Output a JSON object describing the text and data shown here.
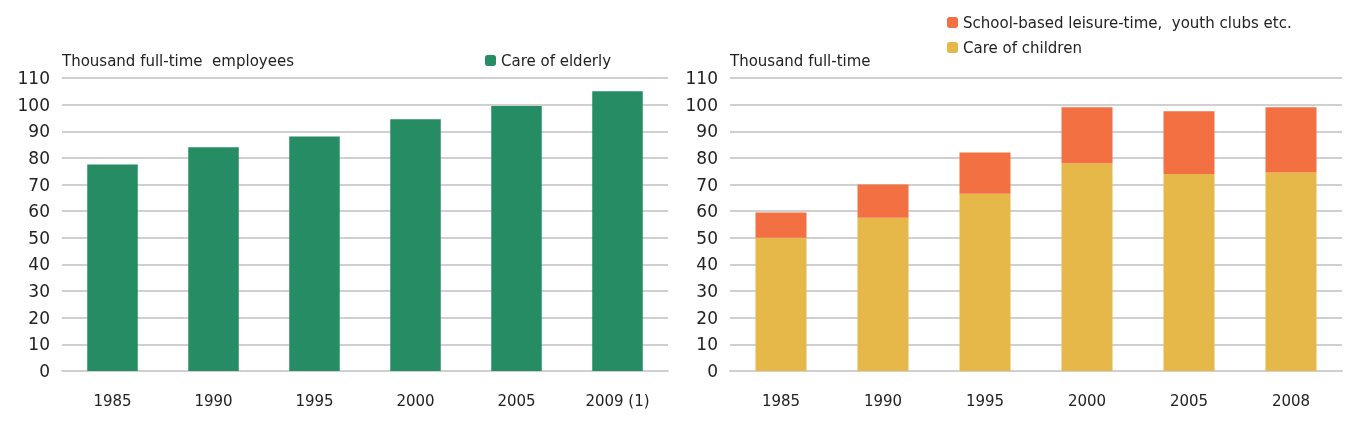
{
  "chart_data": [
    {
      "type": "bar",
      "ylabel": "Thousand full-time  employees",
      "categories": [
        "1985",
        "1990",
        "1995",
        "2000",
        "2005",
        "2009 (1)"
      ],
      "series": [
        {
          "name": "Care of elderly",
          "color": "#258c63",
          "values": [
            77.5,
            84,
            88,
            94.5,
            99.5,
            105
          ]
        }
      ],
      "ylim": [
        0,
        110
      ],
      "yticks": [
        0,
        10,
        20,
        30,
        40,
        50,
        60,
        70,
        80,
        90,
        100,
        110
      ],
      "grid": "y",
      "legend": "top right"
    },
    {
      "type": "bar",
      "ylabel": "Thousand full-time",
      "categories": [
        "1985",
        "1990",
        "1995",
        "2000",
        "2005",
        "2008"
      ],
      "stacked": true,
      "series": [
        {
          "name": "Care of children",
          "color": "#e6b84a",
          "values": [
            50,
            57.5,
            66.5,
            78,
            74,
            74.5
          ]
        },
        {
          "name": "School-based leisure-time,  youth clubs etc.",
          "color": "#f27042",
          "values": [
            9.5,
            12.5,
            15.5,
            21,
            23.5,
            24.5
          ]
        }
      ],
      "ylim": [
        0,
        110
      ],
      "yticks": [
        0,
        10,
        20,
        30,
        40,
        50,
        60,
        70,
        80,
        90,
        100,
        110
      ],
      "grid": "y",
      "legend": "top right"
    }
  ]
}
